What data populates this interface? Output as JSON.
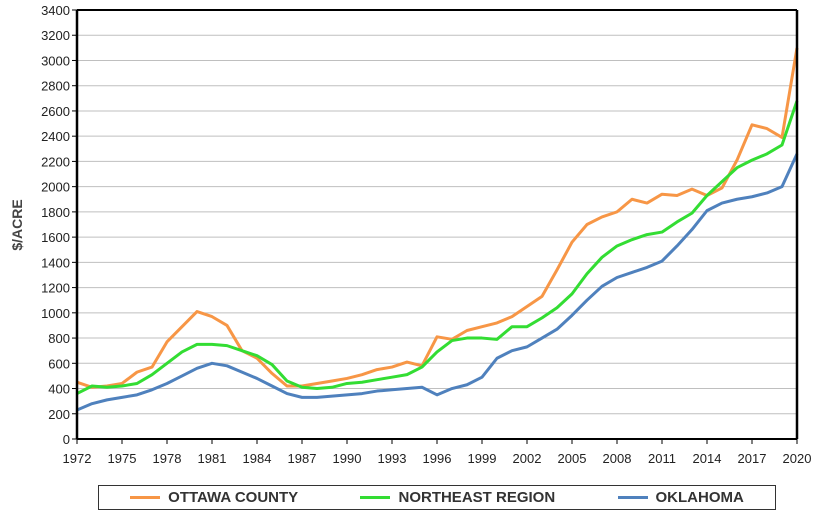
{
  "chart_data": {
    "type": "line",
    "ylabel": "$/ACRE",
    "xlabel": "",
    "ylim": [
      0,
      3400
    ],
    "yticks": [
      0,
      200,
      400,
      600,
      800,
      1000,
      1200,
      1400,
      1600,
      1800,
      2000,
      2200,
      2400,
      2600,
      2800,
      3000,
      3200,
      3400
    ],
    "xticks": [
      1972,
      1975,
      1978,
      1981,
      1984,
      1987,
      1990,
      1993,
      1996,
      1999,
      2002,
      2005,
      2008,
      2011,
      2014,
      2017,
      2020
    ],
    "grid": true,
    "legend_position": "bottom",
    "x": [
      1972,
      1973,
      1974,
      1975,
      1976,
      1977,
      1978,
      1979,
      1980,
      1981,
      1982,
      1983,
      1984,
      1985,
      1986,
      1987,
      1988,
      1989,
      1990,
      1991,
      1992,
      1993,
      1994,
      1995,
      1996,
      1997,
      1998,
      1999,
      2000,
      2001,
      2002,
      2003,
      2004,
      2005,
      2006,
      2007,
      2008,
      2009,
      2010,
      2011,
      2012,
      2013,
      2014,
      2015,
      2016,
      2017,
      2018,
      2019,
      2020
    ],
    "series": [
      {
        "name": "OTTAWA COUNTY",
        "color": "#f79646",
        "values": [
          450,
          410,
          420,
          440,
          530,
          570,
          770,
          890,
          1010,
          970,
          900,
          700,
          640,
          520,
          420,
          420,
          440,
          460,
          480,
          510,
          550,
          570,
          610,
          580,
          810,
          790,
          860,
          890,
          920,
          970,
          1050,
          1130,
          1340,
          1560,
          1700,
          1760,
          1800,
          1900,
          1870,
          1940,
          1930,
          1980,
          1930,
          1990,
          2210,
          2490,
          2460,
          2390,
          3100
        ]
      },
      {
        "name": "NORTHEAST REGION",
        "color": "#33dd33",
        "values": [
          360,
          420,
          410,
          420,
          440,
          510,
          600,
          690,
          750,
          750,
          740,
          700,
          660,
          590,
          460,
          410,
          400,
          410,
          440,
          450,
          470,
          490,
          510,
          570,
          690,
          780,
          800,
          800,
          790,
          890,
          890,
          960,
          1040,
          1150,
          1310,
          1440,
          1530,
          1580,
          1620,
          1640,
          1720,
          1790,
          1930,
          2040,
          2150,
          2210,
          2260,
          2330,
          2680
        ]
      },
      {
        "name": "OKLAHOMA",
        "color": "#4f81bd",
        "values": [
          230,
          280,
          310,
          330,
          350,
          390,
          440,
          500,
          560,
          600,
          580,
          530,
          480,
          420,
          360,
          330,
          330,
          340,
          350,
          360,
          380,
          390,
          400,
          410,
          350,
          400,
          430,
          490,
          640,
          700,
          730,
          800,
          870,
          980,
          1100,
          1210,
          1280,
          1320,
          1360,
          1410,
          1530,
          1660,
          1810,
          1870,
          1900,
          1920,
          1950,
          2000,
          2260
        ]
      }
    ]
  }
}
